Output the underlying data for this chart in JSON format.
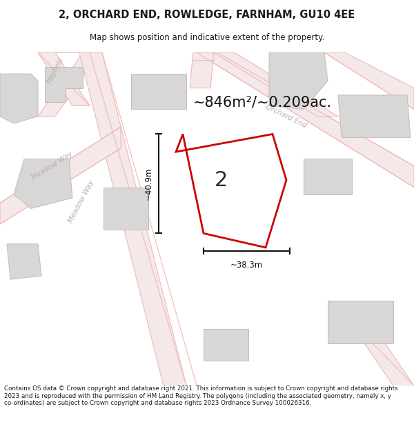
{
  "title": "2, ORCHARD END, ROWLEDGE, FARNHAM, GU10 4EE",
  "subtitle": "Map shows position and indicative extent of the property.",
  "area_label": "~846m²/~0.209ac.",
  "plot_number": "2",
  "dim_vertical": "~40.9m",
  "dim_horizontal": "~38.3m",
  "footer": "Contains OS data © Crown copyright and database right 2021. This information is subject to Crown copyright and database rights 2023 and is reproduced with the permission of HM Land Registry. The polygons (including the associated geometry, namely x, y co-ordinates) are subject to Crown copyright and database rights 2023 Ordnance Survey 100026316.",
  "map_bg": "#f8f6f6",
  "road_line_color": "#f0b8b8",
  "road_fill_color": "#f5e8e8",
  "plot_edge": "#cc0000",
  "building_fill": "#d9d6d6",
  "building_edge": "#c0bcbc",
  "road_label_color": "#b8b0b0",
  "text_color": "#1a1a1a",
  "dim_line_color": "#111111"
}
